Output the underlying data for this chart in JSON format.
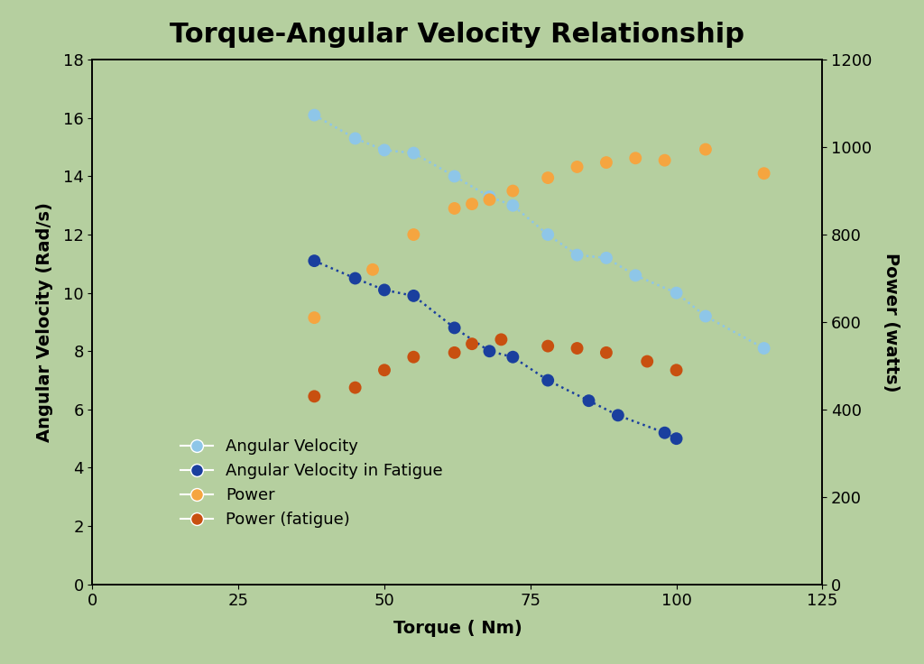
{
  "title": "Torque-Angular Velocity Relationship",
  "xlabel": "Torque ( Nm)",
  "ylabel_left": "Angular Velocity (Rad/s)",
  "ylabel_right": "Power (watts)",
  "background_color": "#b5cf9f",
  "plot_bg_color": "#b5cf9f",
  "xlim": [
    0,
    125
  ],
  "ylim_left": [
    0,
    18
  ],
  "ylim_right": [
    0,
    1200
  ],
  "av_torque": [
    38,
    45,
    50,
    55,
    62,
    68,
    72,
    78,
    83,
    88,
    93,
    100,
    105,
    115
  ],
  "av_velocity": [
    16.1,
    15.3,
    14.9,
    14.8,
    14.0,
    13.3,
    13.0,
    12.0,
    11.3,
    11.2,
    10.6,
    10.0,
    9.2,
    8.1
  ],
  "av_fatigue_torque": [
    38,
    45,
    50,
    55,
    62,
    68,
    72,
    78,
    85,
    90,
    98,
    100
  ],
  "av_fatigue_velocity": [
    11.1,
    10.5,
    10.1,
    9.9,
    8.8,
    8.0,
    7.8,
    7.0,
    6.3,
    5.8,
    5.2,
    5.0
  ],
  "power_torque": [
    38,
    48,
    55,
    62,
    65,
    68,
    72,
    78,
    83,
    88,
    93,
    98,
    105,
    115
  ],
  "power_watts": [
    610,
    720,
    800,
    860,
    870,
    880,
    900,
    930,
    955,
    965,
    975,
    970,
    995,
    940
  ],
  "power_fatigue_torque": [
    38,
    45,
    50,
    55,
    62,
    65,
    70,
    78,
    83,
    88,
    95,
    100
  ],
  "power_fatigue_watts": [
    430,
    450,
    490,
    520,
    530,
    550,
    560,
    545,
    540,
    530,
    510,
    490
  ],
  "av_color": "#8ec6e8",
  "av_fatigue_color": "#1a3f9e",
  "power_color": "#f5a540",
  "power_fatigue_color": "#c85010",
  "title_fontsize": 22,
  "label_fontsize": 14,
  "tick_fontsize": 13,
  "legend_fontsize": 13,
  "marker_size": 100
}
